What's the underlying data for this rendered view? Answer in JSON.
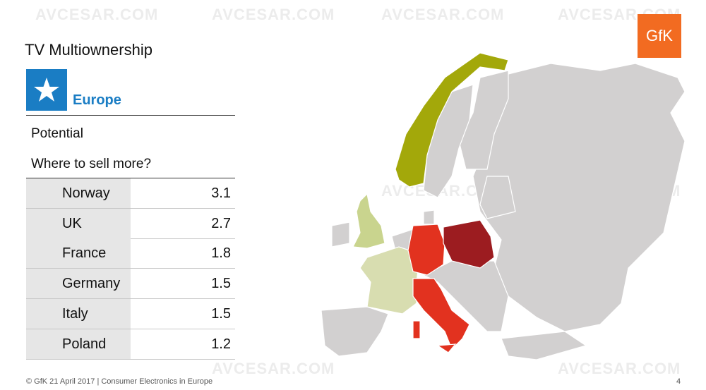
{
  "header": {
    "title": "TV Multiownership",
    "logo": "GfK"
  },
  "section": {
    "label": "Europe",
    "heading": "Potential",
    "subheading": "Where to sell more?"
  },
  "table": {
    "rows": [
      [
        "Norway",
        3.1
      ],
      [
        "UK",
        2.7
      ],
      [
        "France",
        1.8
      ],
      [
        "Germany",
        1.5
      ],
      [
        "Italy",
        1.5
      ],
      [
        "Poland",
        1.2
      ]
    ]
  },
  "watermark": "AVCESAR.COM",
  "footer": {
    "text": "© GfK 21 April 2017 | Consumer Electronics in Europe",
    "page": "4"
  }
}
